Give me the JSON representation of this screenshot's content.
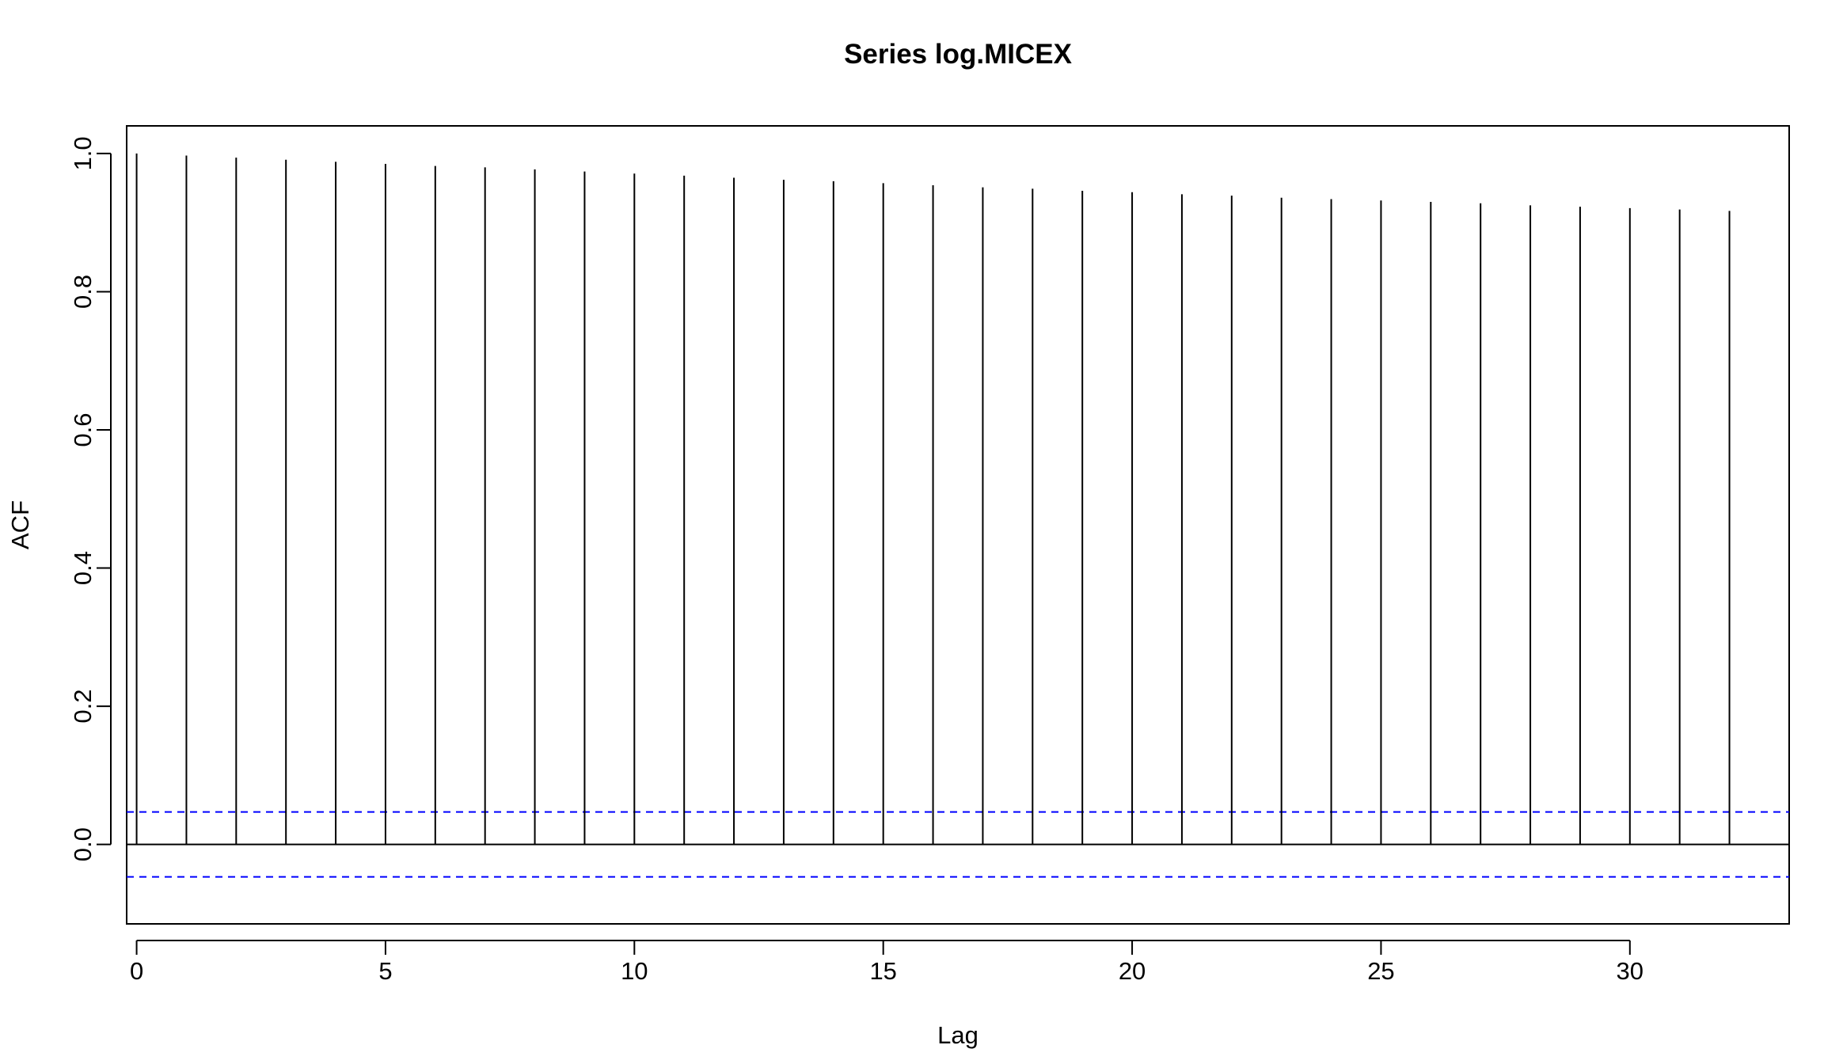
{
  "chart_data": {
    "type": "bar",
    "title": "Series  log.MICEX",
    "xlabel": "Lag",
    "ylabel": "ACF",
    "x": [
      0,
      1,
      2,
      3,
      4,
      5,
      6,
      7,
      8,
      9,
      10,
      11,
      12,
      13,
      14,
      15,
      16,
      17,
      18,
      19,
      20,
      21,
      22,
      23,
      24,
      25,
      26,
      27,
      28,
      29,
      30,
      31,
      32
    ],
    "values": [
      1.0,
      0.997,
      0.994,
      0.991,
      0.988,
      0.985,
      0.982,
      0.98,
      0.977,
      0.974,
      0.971,
      0.968,
      0.965,
      0.962,
      0.96,
      0.957,
      0.954,
      0.951,
      0.949,
      0.946,
      0.944,
      0.941,
      0.939,
      0.936,
      0.934,
      0.932,
      0.93,
      0.928,
      0.925,
      0.923,
      0.921,
      0.919,
      0.917
    ],
    "xlim": [
      -0.2,
      33.2
    ],
    "ylim": [
      -0.115,
      1.04
    ],
    "xticks": [
      "0",
      "5",
      "10",
      "15",
      "20",
      "25",
      "30"
    ],
    "yticks": [
      "0.0",
      "0.2",
      "0.4",
      "0.6",
      "0.8",
      "1.0"
    ],
    "confidence_bound": 0.047,
    "ci_color": "#0000ff",
    "grid": false,
    "legend": "none"
  }
}
